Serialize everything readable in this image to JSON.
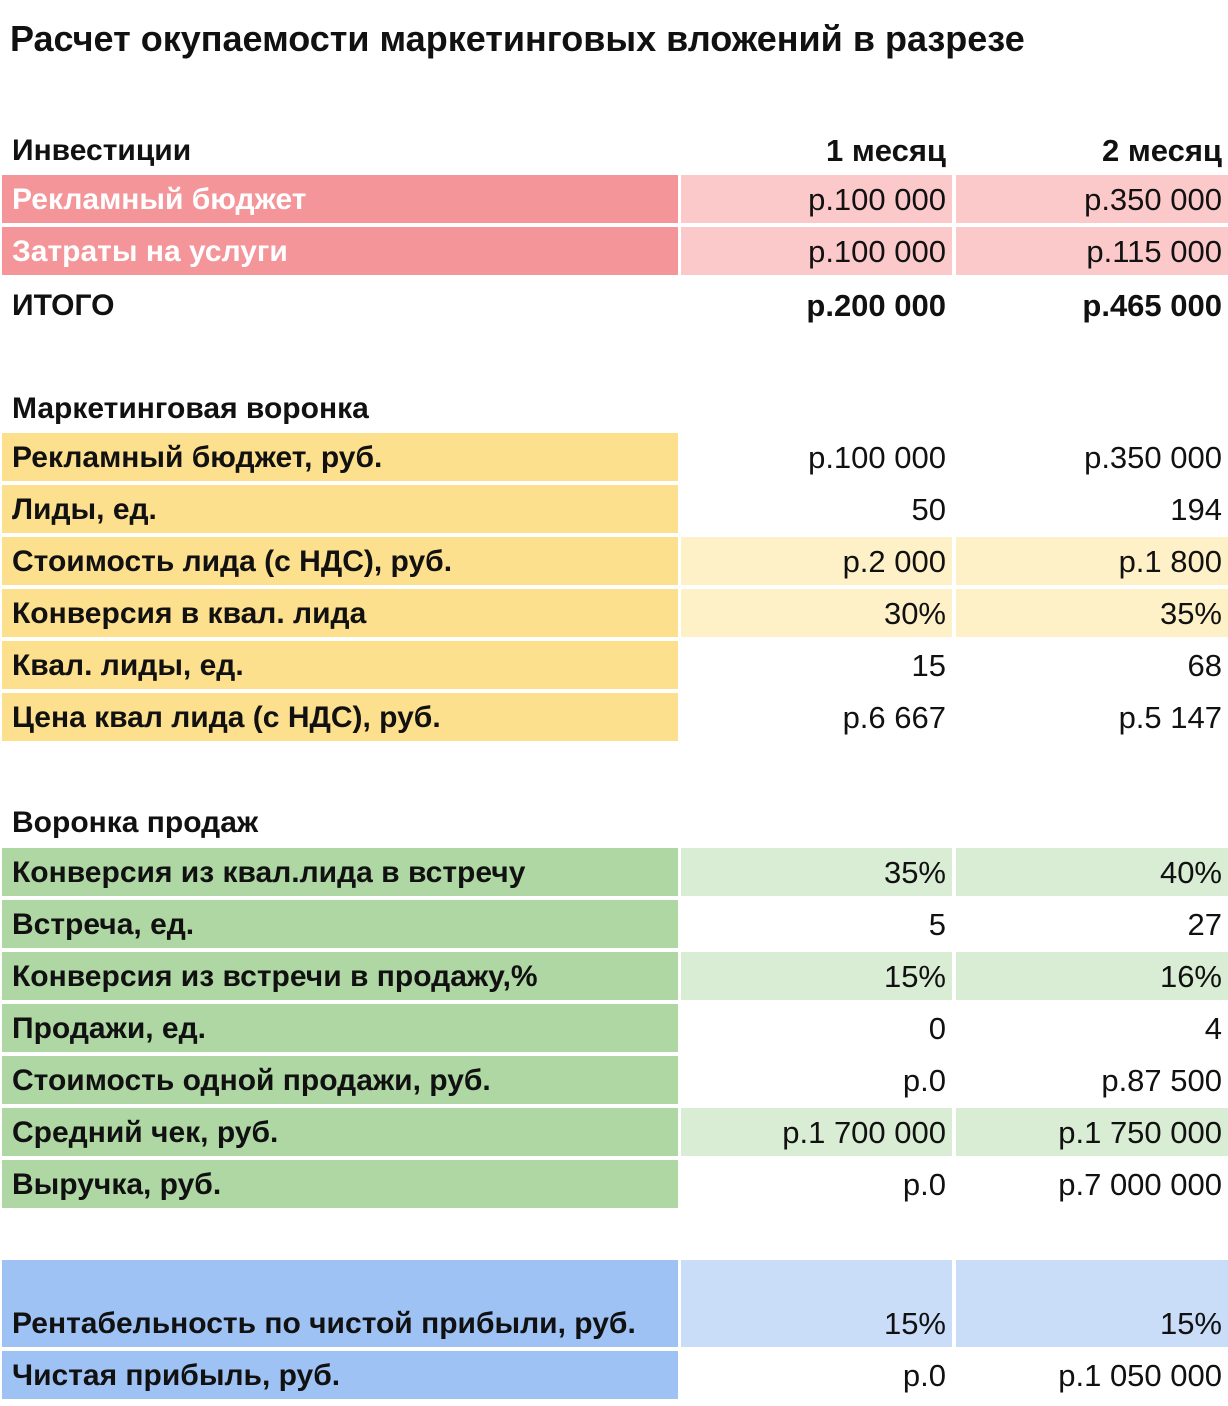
{
  "title": "Расчет окупаемости маркетинговых вложений в разрезе",
  "investments": {
    "header": [
      "Инвестиции",
      "1 месяц",
      "2 месяц"
    ],
    "color": "#f4959a",
    "light_color": "#fcc9cb",
    "label_text_color": "#ffffff",
    "rows": [
      {
        "cells": [
          "Рекламный бюджет",
          "р.100 000",
          "р.350 000"
        ],
        "highlight": true
      },
      {
        "cells": [
          "Затраты на услуги",
          "р.100 000",
          "р.115 000"
        ],
        "highlight": true
      }
    ],
    "total": [
      "ИТОГО",
      "р.200 000",
      "р.465 000"
    ]
  },
  "marketing_funnel": {
    "title": "Маркетинговая воронка",
    "color": "#fde08d",
    "light_color": "#fef1c7",
    "rows": [
      {
        "cells": [
          "Рекламный бюджет, руб.",
          "р.100 000",
          "р.350 000"
        ],
        "highlight": false
      },
      {
        "cells": [
          "Лиды, ед.",
          "50",
          "194"
        ],
        "highlight": false
      },
      {
        "cells": [
          "Стоимость лида (с НДС), руб.",
          "р.2 000",
          "р.1 800"
        ],
        "highlight": true
      },
      {
        "cells": [
          "Конверсия в квал. лида",
          "30%",
          "35%"
        ],
        "highlight": true
      },
      {
        "cells": [
          "Квал. лиды, ед.",
          "15",
          "68"
        ],
        "highlight": false
      },
      {
        "cells": [
          "Цена квал лида (с НДС), руб.",
          "р.6 667",
          "р.5 147"
        ],
        "highlight": false
      }
    ]
  },
  "sales_funnel": {
    "title": "Воронка продаж",
    "color": "#aed7a3",
    "light_color": "#d9ecd4",
    "rows": [
      {
        "cells": [
          "Конверсия из квал.лида в встречу",
          "35%",
          "40%"
        ],
        "highlight": true
      },
      {
        "cells": [
          "Встреча, ед.",
          "5",
          "27"
        ],
        "highlight": false
      },
      {
        "cells": [
          "Конверсия из встречи в продажу,%",
          "15%",
          "16%"
        ],
        "highlight": true
      },
      {
        "cells": [
          "Продажи, ед.",
          "0",
          "4"
        ],
        "highlight": false
      },
      {
        "cells": [
          "Стоимость одной продажи, руб.",
          "р.0",
          "р.87 500"
        ],
        "highlight": false
      },
      {
        "cells": [
          "Средний чек, руб.",
          "р.1 700 000",
          "р.1 750 000"
        ],
        "highlight": true
      },
      {
        "cells": [
          "Выручка, руб.",
          "р.0",
          "р.7 000 000"
        ],
        "highlight": false
      }
    ]
  },
  "profit": {
    "color": "#9fc2f5",
    "light_color": "#c9dcf8",
    "rows": [
      {
        "cells": [
          "Рентабельность по чистой прибыли, руб.",
          "15%",
          "15%"
        ],
        "highlight": true
      },
      {
        "cells": [
          "Чистая прибыль, руб.",
          "р.0",
          "р.1 050 000"
        ],
        "highlight": false
      }
    ]
  }
}
